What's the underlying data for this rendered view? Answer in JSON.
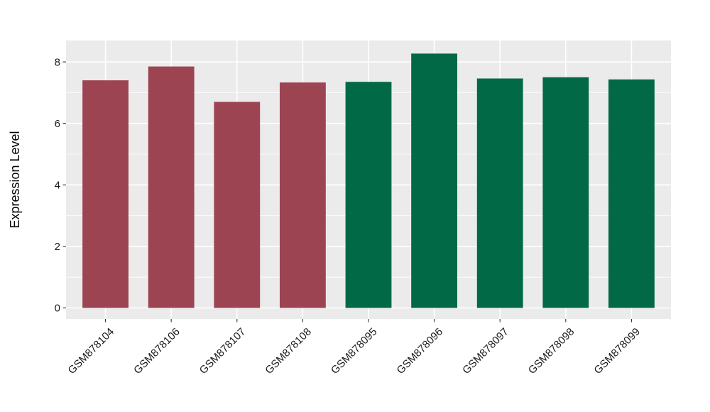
{
  "chart_data": {
    "type": "bar",
    "title": "",
    "ylabel": "Expression Level",
    "xlabel": "",
    "categories": [
      "GSM878104",
      "GSM878106",
      "GSM878107",
      "GSM878108",
      "GSM878095",
      "GSM878096",
      "GSM878097",
      "GSM878098",
      "GSM878099"
    ],
    "series": [
      {
        "name": "Expression Level",
        "values": [
          7.4,
          7.85,
          6.7,
          7.33,
          7.35,
          8.27,
          7.46,
          7.5,
          7.43
        ]
      }
    ],
    "groups": [
      "group1",
      "group1",
      "group1",
      "group1",
      "group2",
      "group2",
      "group2",
      "group2",
      "group2"
    ],
    "group_colors": {
      "group1": "#9D4452",
      "group2": "#026946"
    },
    "yticks": [
      0,
      2,
      4,
      6,
      8
    ],
    "minor_yticks": [
      1,
      3,
      5,
      7
    ],
    "ylim": [
      0,
      8.69
    ],
    "x_tick_rotation_deg": 45,
    "legend_position": "none",
    "grid": "on",
    "panel_background": "#EBEBEB",
    "gridline_major_color": "#FFFFFF",
    "gridline_minor_color": "#FFFFFF",
    "tick_mark_color": "#333333",
    "tick_label_color": "#1A1A1A",
    "axis_title_color": "#000000"
  }
}
